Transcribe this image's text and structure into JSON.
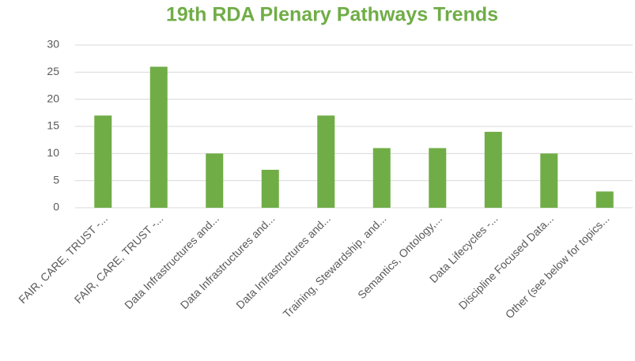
{
  "chart_data": {
    "type": "bar",
    "title": "19th RDA Plenary Pathways Trends",
    "categories": [
      "FAIR, CARE, TRUST -...",
      "FAIR, CARE, TRUST -...",
      "Data Infrastructures and...",
      "Data Infrastructures and...",
      "Data Infrastructures and...",
      "Training, Stewardship, and...",
      "Semantics, Ontology,...",
      "Data Lifecycles -...",
      "Discipline Focused Data...",
      "Other (see below for topics..."
    ],
    "values": [
      17,
      26,
      10,
      7,
      17,
      11,
      11,
      14,
      10,
      3
    ],
    "color": "#70ad47",
    "ylim": [
      0,
      30
    ],
    "yticks": [
      0,
      5,
      10,
      15,
      20,
      25,
      30
    ],
    "grid": true
  }
}
